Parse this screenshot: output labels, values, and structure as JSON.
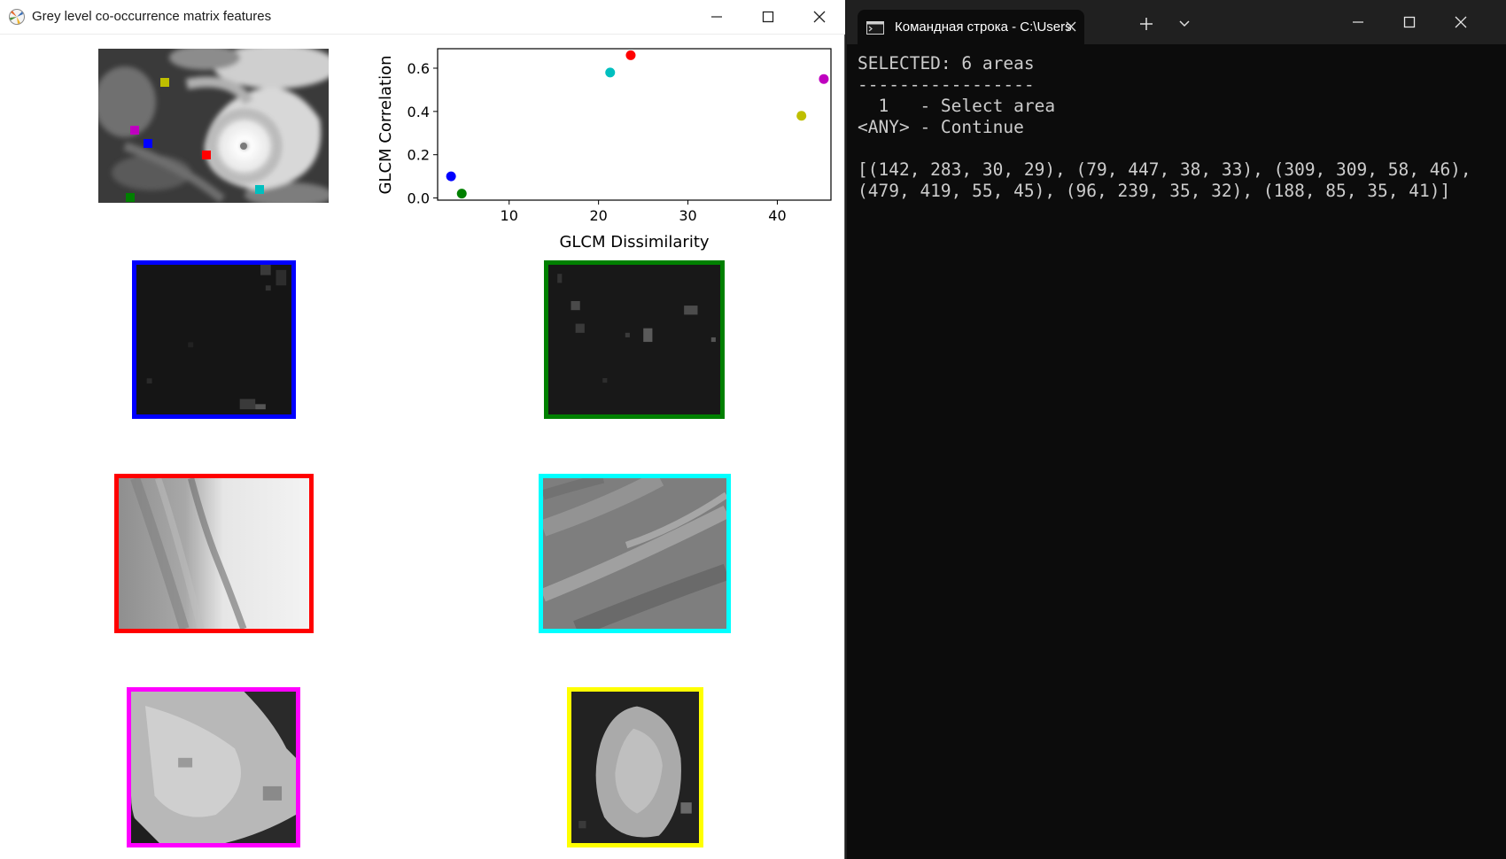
{
  "plot_window": {
    "title": "Grey level co-occurrence matrix features",
    "icon": "matplotlib-icon"
  },
  "terminal_window": {
    "tab_title": "Командная строка - C:\\Users",
    "icon": "cmd-icon",
    "lines": [
      "SELECTED: 6 areas",
      "-----------------",
      "  1   - Select area",
      "<ANY> - Continue",
      "",
      "[(142, 283, 30, 29), (79, 447, 38, 33), (309, 309, 58, 46),",
      "(479, 419, 55, 45), (96, 239, 35, 32), (188, 85, 35, 41)]"
    ]
  },
  "colors": {
    "blue": "#0000ff",
    "green": "#008000",
    "red": "#ff0000",
    "cyan": "#00bfbf",
    "magenta": "#bf00bf",
    "yellow": "#bfbf00",
    "cyan_border": "#00ffff",
    "magenta_border": "#ff00ff",
    "yellow_border": "#ffff00"
  },
  "chart_data": {
    "type": "scatter",
    "xlabel": "GLCM Dissimilarity",
    "ylabel": "GLCM Correlation",
    "xlim": [
      2,
      46
    ],
    "ylim": [
      -0.01,
      0.69
    ],
    "xticks": [
      "10",
      "20",
      "30",
      "40"
    ],
    "yticks": [
      "0.0",
      "0.2",
      "0.4",
      "0.6"
    ],
    "points": [
      {
        "color": "blue",
        "x": 3.5,
        "y": 0.1
      },
      {
        "color": "green",
        "x": 4.7,
        "y": 0.02
      },
      {
        "color": "red",
        "x": 23.6,
        "y": 0.66
      },
      {
        "color": "cyan",
        "x": 21.3,
        "y": 0.58
      },
      {
        "color": "magenta",
        "x": 45.2,
        "y": 0.55
      },
      {
        "color": "yellow",
        "x": 42.7,
        "y": 0.38
      }
    ]
  }
}
